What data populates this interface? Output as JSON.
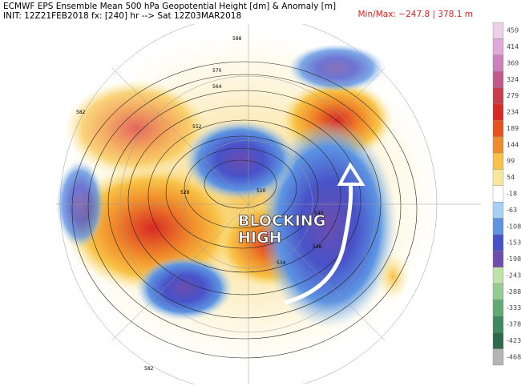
{
  "header": {
    "title": "ECMWF EPS Ensemble Mean 500 hPa Geopotential Height [dm] & Anomaly [m]",
    "init": "INIT: 12Z21FEB2018 fx: [240] hr --> Sat 12Z03MAR2018",
    "minmax": "Min/Max: −247.8 | 378.1 m"
  },
  "annotation": {
    "line1": "BLOCKING",
    "line2": "HIGH"
  },
  "contour_labels": [
    "582",
    "588",
    "570",
    "564",
    "552",
    "528",
    "510",
    "540",
    "546",
    "534",
    "582"
  ],
  "colorbar": {
    "labels": [
      459,
      414,
      369,
      324,
      279,
      234,
      189,
      144,
      99,
      54,
      -18,
      -63,
      -108,
      -153,
      -198,
      -243,
      -288,
      -333,
      -378,
      -423,
      -468
    ],
    "colors": [
      "#ecd0e6",
      "#e0a8d6",
      "#cc80bc",
      "#c4588a",
      "#c83c4c",
      "#d82a24",
      "#e8521e",
      "#f08c2a",
      "#f8c246",
      "#f8e89a",
      "#ffffff",
      "#a8d0f2",
      "#5c94e2",
      "#4852c8",
      "#6c4eae",
      "#bfe2a8",
      "#94cc90",
      "#62aa74",
      "#3e8a5e",
      "#2e6a4a",
      "#b4b4b4"
    ]
  }
}
